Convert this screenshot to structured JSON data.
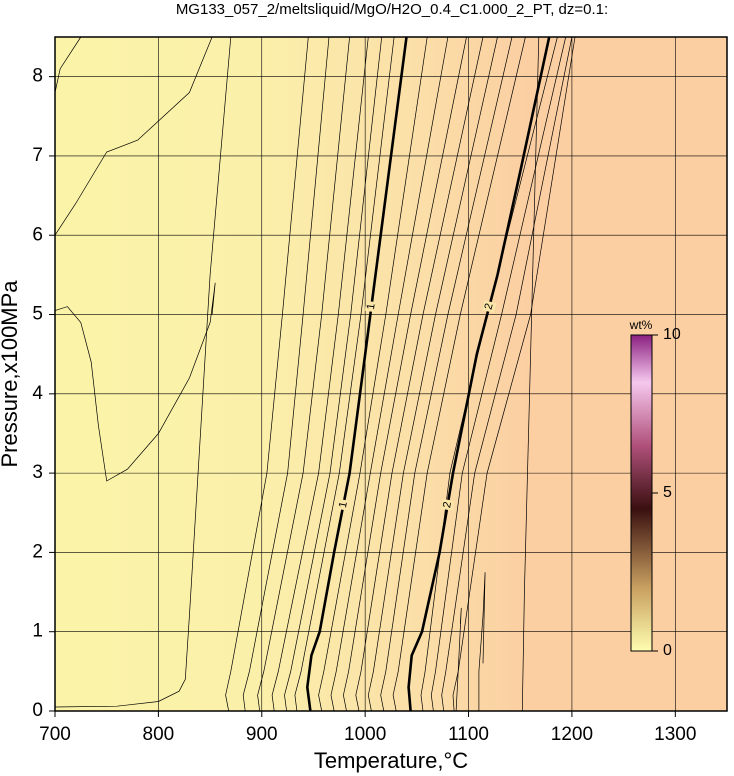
{
  "chart_data": {
    "type": "contour",
    "title": "MG133_057_2/meltsliquid/MgO/H2O_0.4_C1.000_2_PT, dz=0.1:",
    "x_label": "Temperature,°C",
    "y_label": "Pressure,x100MPa",
    "xlim": [
      700,
      1350
    ],
    "ylim": [
      0,
      8.5
    ],
    "xticks": [
      700,
      800,
      900,
      1000,
      1100,
      1200,
      1300
    ],
    "yticks": [
      0,
      1,
      2,
      3,
      4,
      5,
      6,
      7,
      8
    ],
    "grid": true,
    "series": [
      {
        "name": "1",
        "x": [
          947,
          944,
          948,
          956,
          970,
          985,
          1000,
          1010,
          1022,
          1040
        ],
        "y": [
          0,
          0.3,
          0.7,
          1,
          2,
          3,
          4.5,
          5.5,
          6.7,
          8.5
        ]
      },
      {
        "name": "2",
        "x": [
          1044,
          1042,
          1045,
          1055,
          1072,
          1085,
          1108,
          1128,
          1150,
          1178
        ],
        "y": [
          0,
          0.3,
          0.7,
          1,
          2,
          3,
          4.5,
          5.5,
          6.8,
          8.5
        ]
      }
    ],
    "contours": [
      {
        "x": [
          700,
          720,
          750,
          780,
          830,
          852
        ],
        "y": [
          6.0,
          6.4,
          7.05,
          7.2,
          7.8,
          8.5
        ]
      },
      {
        "x": [
          700,
          705,
          725
        ],
        "y": [
          7.8,
          8.1,
          8.5
        ]
      },
      {
        "x": [
          700,
          712,
          725,
          735,
          742,
          750,
          770,
          800,
          830,
          850,
          853,
          855,
          852
        ],
        "y": [
          5.05,
          5.1,
          4.9,
          4.4,
          3.6,
          2.9,
          3.05,
          3.5,
          4.2,
          4.9,
          5.2,
          5.4,
          5.0
        ]
      },
      {
        "x": [
          700,
          760,
          800,
          820,
          826,
          830,
          850,
          870
        ],
        "y": [
          0.05,
          0.06,
          0.12,
          0.25,
          0.4,
          1.2,
          5.5,
          8.5
        ]
      },
      {
        "x": [
          868,
          865,
          870,
          905,
          920,
          945
        ],
        "y": [
          0,
          0.2,
          0.5,
          3,
          5,
          8.5
        ]
      },
      {
        "x": [
          884,
          882,
          888,
          925,
          940,
          965
        ],
        "y": [
          0,
          0.2,
          0.5,
          3,
          5,
          8.5
        ]
      },
      {
        "x": [
          898,
          896,
          902,
          940,
          958,
          985
        ],
        "y": [
          0,
          0.2,
          0.5,
          3,
          5,
          8.5
        ]
      },
      {
        "x": [
          912,
          910,
          916,
          955,
          974,
          1003
        ],
        "y": [
          0,
          0.2,
          0.5,
          3,
          5,
          8.5
        ]
      },
      {
        "x": [
          924,
          922,
          928,
          966,
          986,
          1016
        ],
        "y": [
          0,
          0.2,
          0.5,
          3,
          5,
          8.5
        ]
      },
      {
        "x": [
          934,
          932,
          938,
          975,
          996,
          1028
        ],
        "y": [
          0,
          0.2,
          0.5,
          3,
          5,
          8.5
        ]
      },
      {
        "x": [
          958,
          955,
          960,
          995,
          1020,
          1060
        ],
        "y": [
          0,
          0.2,
          0.5,
          3,
          5,
          8.5
        ]
      },
      {
        "x": [
          970,
          967,
          972,
          1005,
          1032,
          1080
        ],
        "y": [
          0,
          0.2,
          0.5,
          3,
          5,
          8.5
        ]
      },
      {
        "x": [
          982,
          979,
          984,
          1015,
          1044,
          1098
        ],
        "y": [
          0,
          0.2,
          0.5,
          3,
          5,
          8.5
        ]
      },
      {
        "x": [
          994,
          991,
          996,
          1026,
          1056,
          1114
        ],
        "y": [
          0,
          0.2,
          0.5,
          3,
          5,
          8.5
        ]
      },
      {
        "x": [
          1006,
          1003,
          1008,
          1037,
          1068,
          1128
        ],
        "y": [
          0,
          0.2,
          0.5,
          3,
          5,
          8.5
        ]
      },
      {
        "x": [
          1018,
          1015,
          1020,
          1048,
          1080,
          1142
        ],
        "y": [
          0,
          0.2,
          0.5,
          3,
          5,
          8.5
        ]
      },
      {
        "x": [
          1030,
          1027,
          1032,
          1060,
          1092,
          1155
        ],
        "y": [
          0,
          0.2,
          0.5,
          3,
          5,
          8.5
        ]
      },
      {
        "x": [
          1056,
          1054,
          1058,
          1082,
          1118,
          1186
        ],
        "y": [
          0,
          0.2,
          0.5,
          3,
          5,
          8.5
        ]
      },
      {
        "x": [
          1066,
          1064,
          1068,
          1094,
          1132,
          1194
        ],
        "y": [
          0,
          0.2,
          0.5,
          3,
          5,
          8.5
        ]
      },
      {
        "x": [
          1076,
          1074,
          1078,
          1106,
          1146,
          1200
        ],
        "y": [
          0,
          0.2,
          0.5,
          3,
          5,
          8.5
        ]
      },
      {
        "x": [
          1086,
          1085,
          1090,
          1118,
          1160,
          1203
        ],
        "y": [
          0,
          0.2,
          0.5,
          3,
          5,
          8.5
        ]
      },
      {
        "x": [
          1088,
          1090,
          1093,
          1092
        ],
        "y": [
          0,
          0.5,
          1.3,
          1.1
        ]
      },
      {
        "x": [
          1110,
          1110,
          1114,
          1116,
          1114
        ],
        "y": [
          0,
          0.5,
          1.2,
          1.75,
          0.6
        ]
      },
      {
        "x": [
          1152,
          1154,
          1160,
          1168
        ],
        "y": [
          0,
          1.5,
          4.5,
          8.5
        ]
      }
    ],
    "colorbar": {
      "label": "wt%",
      "lim": [
        0,
        10
      ],
      "ticks": [
        0,
        5,
        10
      ]
    }
  }
}
